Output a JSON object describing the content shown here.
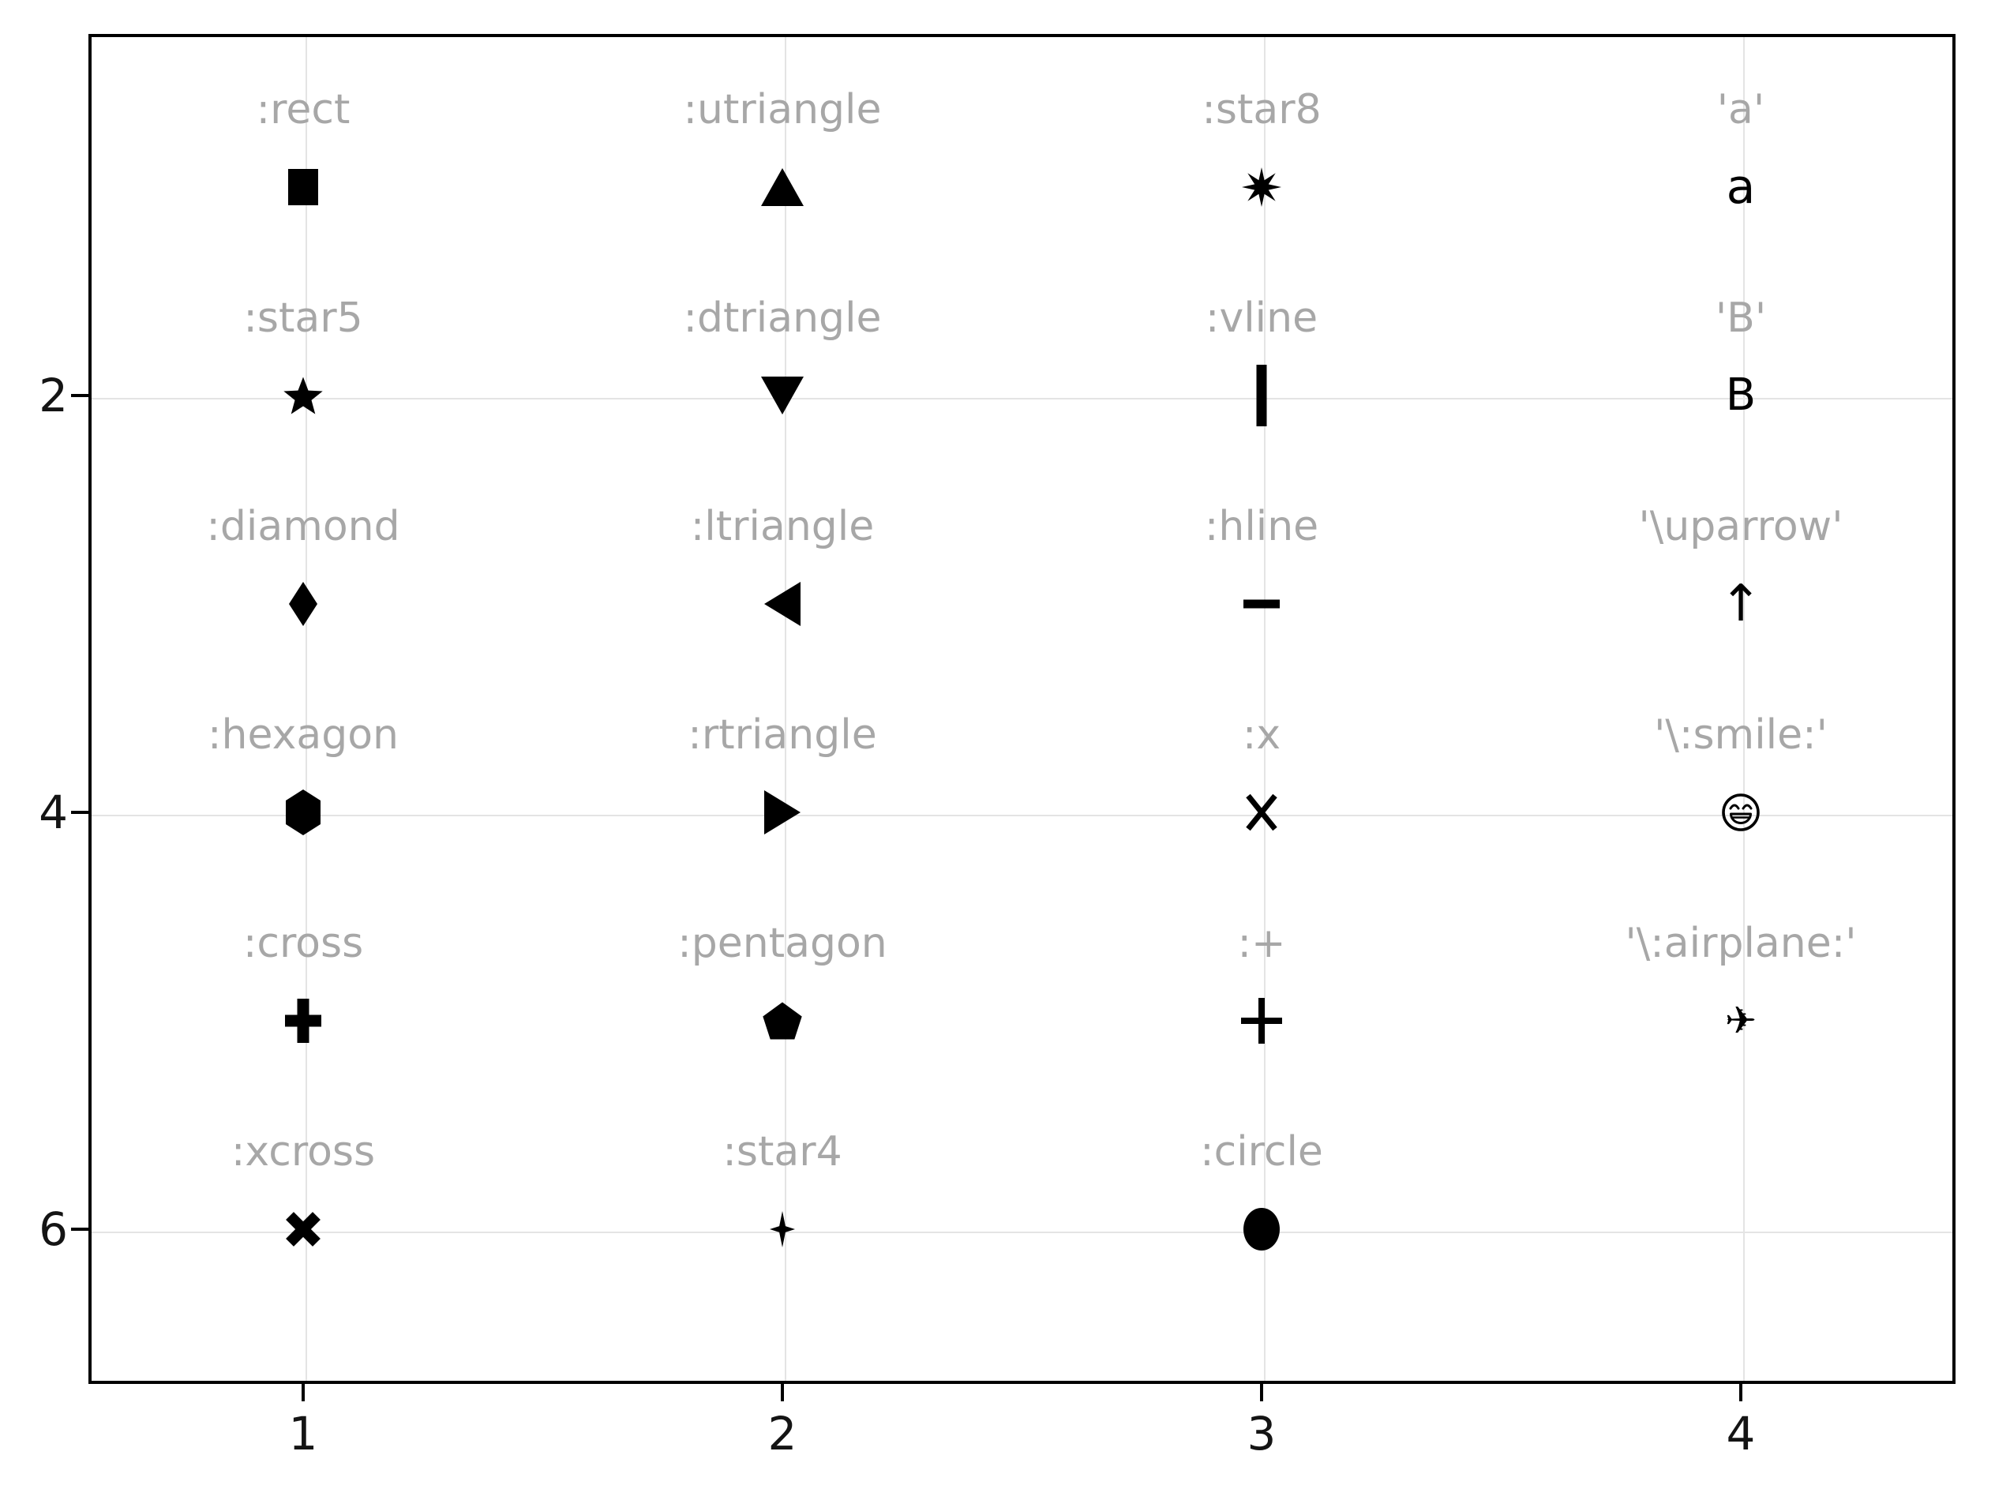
{
  "figure": {
    "background": "#ffffff",
    "frame_color": "#000000",
    "grid_color": "#e4e4e4",
    "tick_label_color": "#141414",
    "point_label_color": "#a7a7a7",
    "marker_color": "#000000"
  },
  "chart_data": {
    "type": "scatter",
    "title": "",
    "xlabel": "",
    "ylabel": "",
    "xlim": [
      0.55,
      4.45
    ],
    "ylim": [
      0.27,
      6.74
    ],
    "y_axis_flipped": true,
    "grid": true,
    "legend": "none",
    "x_ticks": [
      "1",
      "2",
      "3",
      "4"
    ],
    "x_tick_values": [
      1,
      2,
      3,
      4
    ],
    "y_ticks": [
      "2",
      "4",
      "6"
    ],
    "y_tick_values": [
      2,
      4,
      6
    ],
    "marker_color": "#000000",
    "label_color": "#a7a7a7",
    "points": [
      {
        "x": 1,
        "y": 1,
        "label": ":rect",
        "shape": "rect"
      },
      {
        "x": 2,
        "y": 1,
        "label": ":utriangle",
        "shape": "utriangle"
      },
      {
        "x": 3,
        "y": 1,
        "label": ":star8",
        "shape": "star8"
      },
      {
        "x": 4,
        "y": 1,
        "label": "'a'",
        "shape": "char",
        "char": "a"
      },
      {
        "x": 1,
        "y": 2,
        "label": ":star5",
        "shape": "star5"
      },
      {
        "x": 2,
        "y": 2,
        "label": ":dtriangle",
        "shape": "dtriangle"
      },
      {
        "x": 3,
        "y": 2,
        "label": ":vline",
        "shape": "vline"
      },
      {
        "x": 4,
        "y": 2,
        "label": "'B'",
        "shape": "char",
        "char": "B"
      },
      {
        "x": 1,
        "y": 3,
        "label": ":diamond",
        "shape": "diamond"
      },
      {
        "x": 2,
        "y": 3,
        "label": ":ltriangle",
        "shape": "ltriangle"
      },
      {
        "x": 3,
        "y": 3,
        "label": ":hline",
        "shape": "hline"
      },
      {
        "x": 4,
        "y": 3,
        "label": "'\\uparrow'",
        "shape": "char",
        "char": "↑"
      },
      {
        "x": 1,
        "y": 4,
        "label": ":hexagon",
        "shape": "hexagon"
      },
      {
        "x": 2,
        "y": 4,
        "label": ":rtriangle",
        "shape": "rtriangle"
      },
      {
        "x": 3,
        "y": 4,
        "label": ":x",
        "shape": "x"
      },
      {
        "x": 4,
        "y": 4,
        "label": "'\\:smile:'",
        "shape": "smile"
      },
      {
        "x": 1,
        "y": 5,
        "label": ":cross",
        "shape": "cross"
      },
      {
        "x": 2,
        "y": 5,
        "label": ":pentagon",
        "shape": "pentagon"
      },
      {
        "x": 3,
        "y": 5,
        "label": ":+",
        "shape": "plus"
      },
      {
        "x": 4,
        "y": 5,
        "label": "'\\:airplane:'",
        "shape": "char",
        "char": "✈"
      },
      {
        "x": 1,
        "y": 6,
        "label": ":xcross",
        "shape": "xcross"
      },
      {
        "x": 2,
        "y": 6,
        "label": ":star4",
        "shape": "star4"
      },
      {
        "x": 3,
        "y": 6,
        "label": ":circle",
        "shape": "circle"
      }
    ]
  }
}
